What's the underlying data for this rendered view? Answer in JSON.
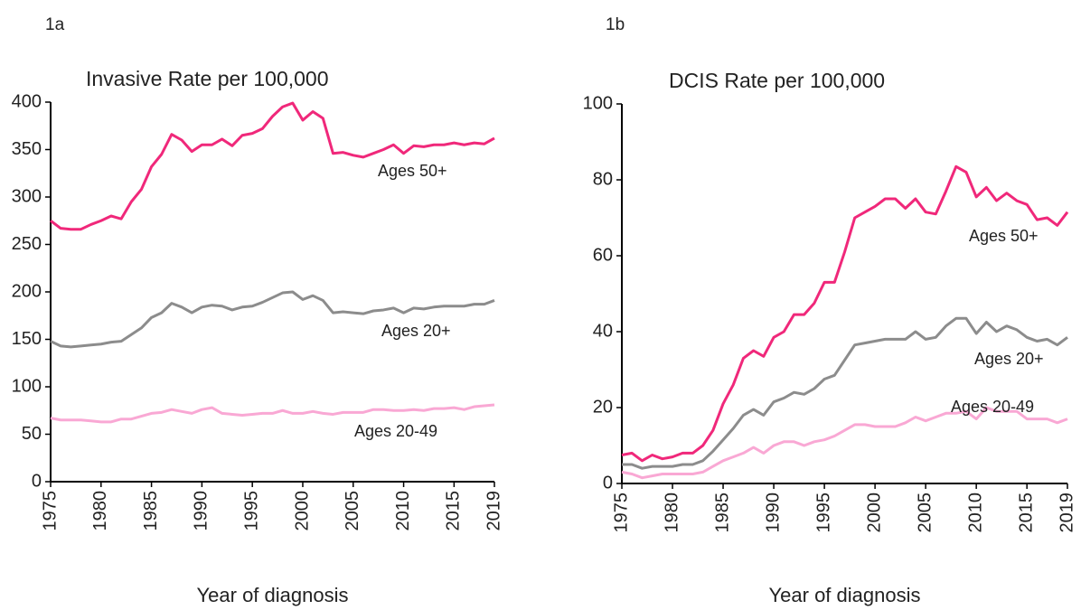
{
  "chart_data": [
    {
      "type": "line",
      "label": "1a",
      "title": "Invasive Rate per 100,000",
      "x_label": "Year of diagnosis",
      "x": [
        1975,
        1976,
        1977,
        1978,
        1979,
        1980,
        1981,
        1982,
        1983,
        1984,
        1985,
        1986,
        1987,
        1988,
        1989,
        1990,
        1991,
        1992,
        1993,
        1994,
        1995,
        1996,
        1997,
        1998,
        1999,
        2000,
        2001,
        2002,
        2003,
        2004,
        2005,
        2006,
        2007,
        2008,
        2009,
        2010,
        2011,
        2012,
        2013,
        2014,
        2015,
        2016,
        2017,
        2018,
        2019
      ],
      "xlim": [
        1975,
        2019
      ],
      "xticks": [
        1975,
        1980,
        1985,
        1990,
        1995,
        2000,
        2005,
        2010,
        2015,
        2019
      ],
      "ylim": [
        0,
        400
      ],
      "yticks": [
        0,
        50,
        100,
        150,
        200,
        250,
        300,
        350,
        400
      ],
      "grid": false,
      "series": [
        {
          "name": "Ages 50+",
          "color": "#f0287a",
          "values": [
            275,
            267,
            266,
            266,
            271,
            275,
            280,
            277,
            295,
            308,
            332,
            345,
            366,
            360,
            348,
            355,
            355,
            361,
            354,
            365,
            367,
            372,
            385,
            395,
            399,
            381,
            390,
            383,
            346,
            347,
            344,
            342,
            346,
            350,
            355,
            346,
            354,
            353,
            355,
            355,
            357,
            355,
            357,
            356,
            362
          ]
        },
        {
          "name": "Ages 20+",
          "color": "#8c8c8c",
          "values": [
            148,
            143,
            142,
            143,
            144,
            145,
            147,
            148,
            155,
            162,
            173,
            178,
            188,
            184,
            178,
            184,
            186,
            185,
            181,
            184,
            185,
            189,
            194,
            199,
            200,
            192,
            196,
            191,
            178,
            179,
            178,
            177,
            180,
            181,
            183,
            178,
            183,
            182,
            184,
            185,
            185,
            185,
            187,
            187,
            191
          ]
        },
        {
          "name": "Ages 20-49",
          "color": "#f9a8d4",
          "values": [
            67,
            65,
            65,
            65,
            64,
            63,
            63,
            66,
            66,
            69,
            72,
            73,
            76,
            74,
            72,
            76,
            78,
            72,
            71,
            70,
            71,
            72,
            72,
            75,
            72,
            72,
            74,
            72,
            71,
            73,
            73,
            73,
            76,
            76,
            75,
            75,
            76,
            75,
            77,
            77,
            78,
            76,
            79,
            80,
            81
          ]
        }
      ]
    },
    {
      "type": "line",
      "label": "1b",
      "title": "DCIS Rate per 100,000",
      "x_label": "Year of diagnosis",
      "x": [
        1975,
        1976,
        1977,
        1978,
        1979,
        1980,
        1981,
        1982,
        1983,
        1984,
        1985,
        1986,
        1987,
        1988,
        1989,
        1990,
        1991,
        1992,
        1993,
        1994,
        1995,
        1996,
        1997,
        1998,
        1999,
        2000,
        2001,
        2002,
        2003,
        2004,
        2005,
        2006,
        2007,
        2008,
        2009,
        2010,
        2011,
        2012,
        2013,
        2014,
        2015,
        2016,
        2017,
        2018,
        2019
      ],
      "xlim": [
        1975,
        2019
      ],
      "xticks": [
        1975,
        1980,
        1985,
        1990,
        1995,
        2000,
        2005,
        2010,
        2015,
        2019
      ],
      "ylim": [
        0,
        100
      ],
      "yticks": [
        0,
        20,
        40,
        60,
        80,
        100
      ],
      "grid": false,
      "series": [
        {
          "name": "Ages 50+",
          "color": "#f0287a",
          "values": [
            7.5,
            8,
            6,
            7.5,
            6.5,
            7,
            8,
            8,
            10,
            14,
            21,
            26,
            33,
            35,
            33.5,
            38.5,
            40,
            44.5,
            44.5,
            47.5,
            53,
            53,
            61,
            70,
            71.5,
            73,
            75,
            75,
            72.5,
            75,
            71.5,
            71,
            77,
            83.5,
            82,
            75.5,
            78,
            74.5,
            76.5,
            74.5,
            73.5,
            69.5,
            70,
            68,
            71.5
          ]
        },
        {
          "name": "Ages 20+",
          "color": "#8c8c8c",
          "values": [
            5,
            5,
            4,
            4.5,
            4.5,
            4.5,
            5,
            5,
            6,
            8.5,
            11.5,
            14.5,
            18,
            19.5,
            18,
            21.5,
            22.5,
            24,
            23.5,
            25,
            27.5,
            28.5,
            32.5,
            36.5,
            37,
            37.5,
            38,
            38,
            38,
            40,
            38,
            38.5,
            41.5,
            43.5,
            43.5,
            39.5,
            42.5,
            40,
            41.5,
            40.5,
            38.5,
            37.5,
            38,
            36.5,
            38.5
          ]
        },
        {
          "name": "Ages 20-49",
          "color": "#f9a8d4",
          "values": [
            3,
            2.5,
            1.5,
            2,
            2.5,
            2.5,
            2.5,
            2.5,
            3,
            4.5,
            6,
            7,
            8,
            9.5,
            8,
            10,
            11,
            11,
            10,
            11,
            11.5,
            12.5,
            14,
            15.5,
            15.5,
            15,
            15,
            15,
            16,
            17.5,
            16.5,
            17.5,
            18.5,
            18.5,
            19,
            17,
            20,
            19,
            19,
            19,
            17,
            17,
            17,
            16,
            17
          ]
        }
      ]
    }
  ]
}
